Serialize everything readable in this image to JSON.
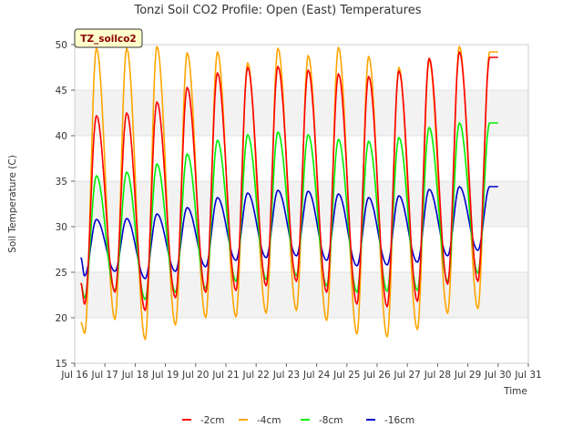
{
  "chart_data": {
    "type": "line",
    "title": "Tonzi Soil CO2 Profile: Open (East) Temperatures",
    "xlabel": "Time",
    "ylabel": "Soil Temperature (C)",
    "site_label": "TZ_soilco2",
    "xlim": [
      16,
      31
    ],
    "ylim": [
      15,
      50
    ],
    "x_ticks": [
      16,
      17,
      18,
      19,
      20,
      21,
      22,
      23,
      24,
      25,
      26,
      27,
      28,
      29,
      30,
      31
    ],
    "x_tick_labels": [
      "Jul 16",
      "Jul 17",
      "Jul 18",
      "Jul 19",
      "Jul 20",
      "Jul 21",
      "Jul 22",
      "Jul 23",
      "Jul 24",
      "Jul 25",
      "Jul 26",
      "Jul 27",
      "Jul 28",
      "Jul 29",
      "Jul 30",
      "Jul 31"
    ],
    "y_ticks": [
      15,
      20,
      25,
      30,
      35,
      40,
      45,
      50
    ],
    "grid": true,
    "legend_position": "bottom",
    "series": [
      {
        "name": "-2cm",
        "color": "#ff0000",
        "x_start": 16.2,
        "x_end": 30.0,
        "minima": [
          21.5,
          22.8,
          20.8,
          22.2,
          22.8,
          23.0,
          23.5,
          24.0,
          22.8,
          21.5,
          21.2,
          21.8,
          23.7,
          24.0,
          27.5
        ],
        "maxima": [
          42.2,
          42.5,
          43.7,
          45.3,
          46.9,
          47.5,
          47.6,
          47.2,
          46.8,
          46.5,
          47.1,
          48.5,
          49.2,
          48.6
        ]
      },
      {
        "name": "-4cm",
        "color": "#ffa500",
        "x_start": 16.2,
        "x_end": 30.0,
        "minima": [
          18.3,
          19.8,
          17.6,
          19.2,
          20.0,
          20.1,
          20.5,
          20.8,
          19.7,
          18.2,
          17.9,
          18.7,
          20.5,
          21.0,
          24.7
        ],
        "maxima": [
          49.6,
          49.6,
          49.8,
          49.1,
          49.2,
          48.0,
          49.6,
          48.8,
          49.7,
          48.7,
          47.5,
          48.3,
          49.8,
          49.2
        ]
      },
      {
        "name": "-8cm",
        "color": "#00ee00",
        "x_start": 16.2,
        "x_end": 30.0,
        "minima": [
          22.2,
          23.0,
          22.0,
          22.8,
          23.2,
          24.0,
          24.2,
          24.6,
          23.5,
          22.8,
          22.9,
          23.0,
          24.0,
          24.9,
          28.0
        ],
        "maxima": [
          35.6,
          36.0,
          36.9,
          38.0,
          39.5,
          40.1,
          40.4,
          40.1,
          39.6,
          39.4,
          39.8,
          40.9,
          41.4,
          41.4
        ]
      },
      {
        "name": "-16cm",
        "color": "#0000cc",
        "x_start": 16.2,
        "x_end": 30.0,
        "minima": [
          24.6,
          25.1,
          24.3,
          25.1,
          25.6,
          26.3,
          26.6,
          26.8,
          26.3,
          25.7,
          25.8,
          26.1,
          26.8,
          27.4,
          30.5
        ],
        "maxima": [
          30.8,
          30.9,
          31.4,
          32.1,
          33.2,
          33.7,
          34.0,
          33.9,
          33.6,
          33.2,
          33.4,
          34.1,
          34.4,
          34.4
        ]
      }
    ]
  }
}
